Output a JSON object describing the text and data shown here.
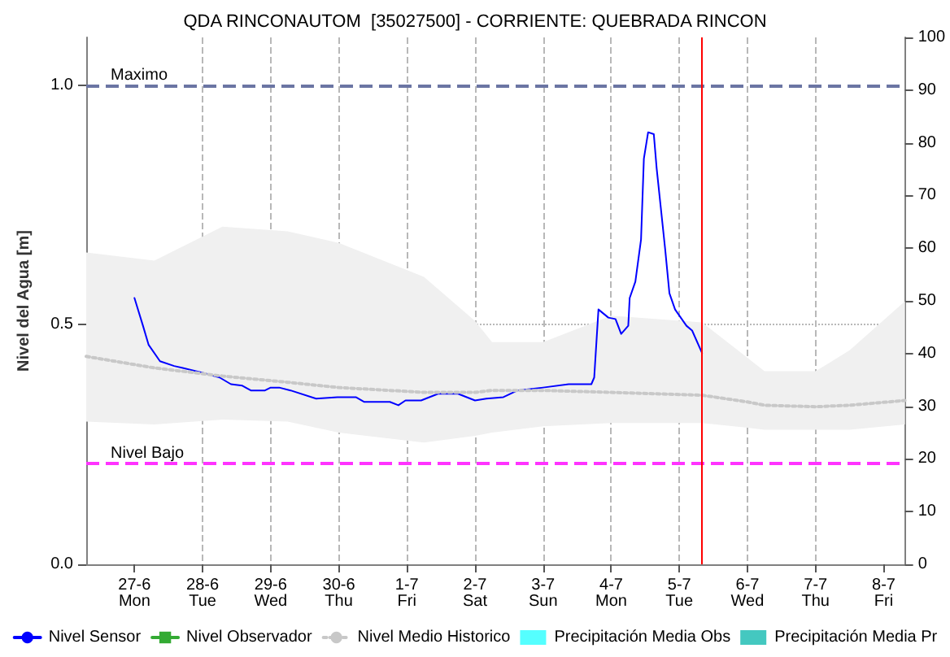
{
  "chart_data": {
    "type": "line",
    "title": "QDA RINCONAUTOM  [35027500] - CORRIENTE: QUEBRADA RINCON",
    "ylabel": "Nivel del Agua [m]",
    "xlim": [
      "--06-26T07:00",
      "--07-08T07:30"
    ],
    "xticks": [
      {
        "value": "--06-27",
        "label": "27-6\nMon"
      },
      {
        "value": "--06-28",
        "label": "28-6\nTue"
      },
      {
        "value": "--06-29",
        "label": "29-6\nWed"
      },
      {
        "value": "--06-30",
        "label": "30-6\nThu"
      },
      {
        "value": "--07-01",
        "label": "1-7\nFri"
      },
      {
        "value": "--07-02",
        "label": "2-7\nSat"
      },
      {
        "value": "--07-03",
        "label": "3-7\nSun"
      },
      {
        "value": "--07-04",
        "label": "4-7\nMon"
      },
      {
        "value": "--07-05",
        "label": "5-7\nTue"
      },
      {
        "value": "--07-06",
        "label": "6-7\nWed"
      },
      {
        "value": "--07-07",
        "label": "7-7\nThu"
      },
      {
        "value": "--07-08",
        "label": "8-7\nFri"
      }
    ],
    "ylim": [
      0,
      1.1
    ],
    "yticks": [
      {
        "value": 0,
        "label": "0.0"
      },
      {
        "value": 0.5,
        "label": "0.5"
      },
      {
        "value": 1,
        "label": "1.0"
      }
    ],
    "y2lim": [
      0,
      100
    ],
    "y2ticks": [
      0,
      10,
      20,
      30,
      40,
      50,
      60,
      70,
      80,
      90,
      100
    ],
    "grid": true,
    "legend": "bottom",
    "series": [
      {
        "name": "Nivel Sensor",
        "color": "#0000ff",
        "marker": "none",
        "line_style": "solid",
        "x": [
          "--06-27T00:00",
          "--06-27T03:00",
          "--06-27T05:00",
          "--06-27T09:00",
          "--06-27T14:00",
          "--06-27T17:00",
          "--06-28T00:00",
          "--06-28T06:00",
          "--06-28T10:00",
          "--06-28T14:00",
          "--06-28T17:00",
          "--06-28T22:00",
          "--06-29T00:00",
          "--06-29T03:00",
          "--06-29T07:00",
          "--06-29T16:00",
          "--06-29T23:30",
          "--06-30T06:00",
          "--06-30T09:00",
          "--06-30T18:00",
          "--06-30T21:00",
          "--06-30T23:30",
          "--07-01T05:00",
          "--07-01T11:00",
          "--07-01T18:00",
          "--07-02T00:00",
          "--07-02T04:00",
          "--07-02T10:00",
          "--07-02T15:00",
          "--07-03T00:00",
          "--07-03T09:00",
          "--07-03T17:00",
          "--07-03T18:00",
          "--07-03T19:30",
          "--07-03T23:00",
          "--07-04T01:30",
          "--07-04T03:30",
          "--07-04T06:00",
          "--07-04T06:30",
          "--07-04T08:30",
          "--07-04T10:30",
          "--07-04T11:30",
          "--07-04T13:00",
          "--07-04T15:00",
          "--07-04T16:00",
          "--07-04T19:00",
          "--07-04T20:30",
          "--07-04T22:30",
          "--07-05T02:30",
          "--07-05T04:30",
          "--07-05T08:00"
        ],
        "values": [
          0.556,
          0.498,
          0.458,
          0.424,
          0.414,
          0.41,
          0.4,
          0.39,
          0.376,
          0.373,
          0.363,
          0.363,
          0.369,
          0.369,
          0.363,
          0.346,
          0.349,
          0.349,
          0.339,
          0.339,
          0.332,
          0.342,
          0.342,
          0.356,
          0.356,
          0.342,
          0.346,
          0.349,
          0.363,
          0.369,
          0.376,
          0.376,
          0.39,
          0.532,
          0.515,
          0.512,
          0.481,
          0.498,
          0.556,
          0.59,
          0.678,
          0.847,
          0.902,
          0.898,
          0.827,
          0.658,
          0.566,
          0.532,
          0.498,
          0.488,
          0.441
        ]
      },
      {
        "name": "Nivel Observador",
        "color": "#33aa33",
        "marker": "square",
        "line_style": "solid"
      },
      {
        "name": "Nivel Medio Historico",
        "color": "#c8c8c8",
        "marker": "none",
        "line_style": "dotted",
        "x": [
          "--06-26T07:00",
          "--06-27T07:00",
          "--06-28T07:00",
          "--06-29T06:00",
          "--06-30T00:00",
          "--07-01T06:00",
          "--07-02T00:00",
          "--07-02T06:00",
          "--07-03T00:00",
          "--07-04T00:00",
          "--07-05T08:00",
          "--07-06T00:00",
          "--07-06T06:00",
          "--07-07T00:00",
          "--07-07T12:00",
          "--07-08T07:30"
        ],
        "values": [
          0.434,
          0.41,
          0.393,
          0.38,
          0.369,
          0.359,
          0.359,
          0.363,
          0.363,
          0.359,
          0.353,
          0.339,
          0.332,
          0.329,
          0.332,
          0.342
        ],
        "lower": [
          0.298,
          0.292,
          0.302,
          0.298,
          0.275,
          0.254,
          0.268,
          0.275,
          0.288,
          0.295,
          0.295,
          0.285,
          0.281,
          0.281,
          0.281,
          0.292
        ],
        "upper": [
          0.651,
          0.634,
          0.705,
          0.695,
          0.671,
          0.6,
          0.508,
          0.464,
          0.464,
          0.519,
          0.505,
          0.431,
          0.403,
          0.403,
          0.447,
          0.549
        ]
      },
      {
        "name": "Precipitación Media Obs",
        "type": "bar",
        "color": "#55ffff"
      },
      {
        "name": "Precipitación Media Pr",
        "type": "bar",
        "color": "#44c8c0"
      }
    ],
    "ref_lines": [
      {
        "axis": "y",
        "value": 1.0,
        "label": "Maximo",
        "color": "#6b75a3",
        "line_style": "dashed"
      },
      {
        "axis": "y",
        "value": 0.21,
        "label": "Nivel Bajo",
        "color": "#ff33ff",
        "line_style": "dashed"
      },
      {
        "axis": "x",
        "value": "--07-05T08:00",
        "label": null,
        "color": "#ff0000",
        "line_style": "solid"
      }
    ]
  }
}
